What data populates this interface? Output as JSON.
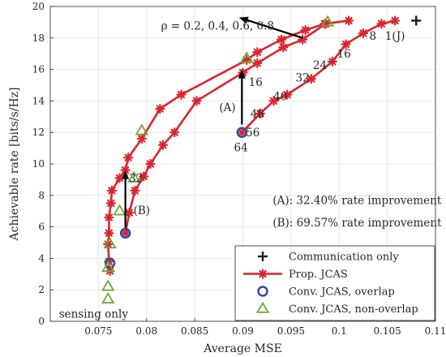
{
  "chart_data": {
    "type": "line",
    "xlabel": "Average MSE",
    "ylabel": "Achievable rate [bits/s/Hz]",
    "xlim": [
      0.07,
      0.11
    ],
    "ylim": [
      0,
      20
    ],
    "xticks": [
      "0.075",
      "0.08",
      "0.085",
      "0.09",
      "0.095",
      "0.1",
      "0.105",
      "0.11"
    ],
    "yticks": [
      "0",
      "2",
      "4",
      "6",
      "8",
      "10",
      "12",
      "14",
      "16",
      "18",
      "20"
    ],
    "grid": true,
    "legend_position": "bottom-right",
    "colors": {
      "prop": "#d9262e",
      "overlap": "#2f4a9e",
      "nonoverlap": "#6fa83a",
      "comm": "#1a1a1a",
      "arrow": "#000000"
    },
    "series": [
      {
        "key": "comm",
        "name": "Communication only",
        "marker": "plus",
        "points": [
          [
            0.108,
            19.1
          ]
        ]
      },
      {
        "key": "prop",
        "name": "Prop. JCAS",
        "marker": "asterisk",
        "curves": [
          [
            [
              0.0762,
              3.2
            ],
            [
              0.0761,
              3.8
            ],
            [
              0.076,
              4.9
            ],
            [
              0.0761,
              5.6
            ],
            [
              0.0761,
              6.6
            ],
            [
              0.0763,
              7.5
            ],
            [
              0.0764,
              8.3
            ],
            [
              0.0772,
              9.1
            ],
            [
              0.0778,
              9.6
            ],
            [
              0.0781,
              10.4
            ],
            [
              0.0795,
              11.6
            ],
            [
              0.0814,
              13.5
            ],
            [
              0.0836,
              14.4
            ],
            [
              0.0904,
              16.6
            ],
            [
              0.0915,
              17.1
            ],
            [
              0.094,
              17.9
            ],
            [
              0.0965,
              18.5
            ],
            [
              0.0985,
              18.9
            ],
            [
              0.101,
              19.1
            ]
          ],
          [
            [
              0.0778,
              5.6
            ],
            [
              0.0782,
              6.9
            ],
            [
              0.0788,
              8.3
            ],
            [
              0.0797,
              9.2
            ],
            [
              0.0804,
              10.0
            ],
            [
              0.0817,
              11.2
            ],
            [
              0.0829,
              12.0
            ],
            [
              0.0852,
              14.0
            ],
            [
              0.09,
              15.8
            ],
            [
              0.0915,
              16.4
            ],
            [
              0.0942,
              17.4
            ],
            [
              0.0962,
              17.9
            ],
            [
              0.0986,
              18.9
            ]
          ],
          [
            [
              0.0899,
              12.0
            ],
            [
              0.0918,
              13.2
            ],
            [
              0.0932,
              14.0
            ],
            [
              0.0946,
              14.4
            ],
            [
              0.0971,
              15.4
            ],
            [
              0.0993,
              16.5
            ],
            [
              0.1007,
              17.6
            ],
            [
              0.1025,
              18.3
            ],
            [
              0.1044,
              18.9
            ],
            [
              0.1058,
              19.1
            ]
          ]
        ]
      },
      {
        "key": "overlap",
        "name": "Conv. JCAS, overlap",
        "marker": "circle",
        "points": [
          [
            0.0762,
            3.7
          ],
          [
            0.0778,
            5.6
          ],
          [
            0.0899,
            12.0
          ]
        ]
      },
      {
        "key": "nonoverlap",
        "name": "Conv. JCAS, non-overlap",
        "marker": "triangle",
        "points": [
          [
            0.076,
            1.4
          ],
          [
            0.076,
            2.2
          ],
          [
            0.076,
            3.4
          ],
          [
            0.0762,
            4.9
          ],
          [
            0.0772,
            7.0
          ],
          [
            0.0787,
            9.1
          ],
          [
            0.0795,
            12.1
          ],
          [
            0.0904,
            16.7
          ],
          [
            0.0988,
            19.0
          ]
        ]
      }
    ],
    "arrows": [
      {
        "from": [
          0.0899,
          12.5
        ],
        "to": [
          0.0899,
          16.0
        ]
      },
      {
        "from": [
          0.0778,
          5.95
        ],
        "to": [
          0.0778,
          9.6
        ]
      },
      {
        "from": [
          0.0962,
          18.0
        ],
        "to": [
          0.0896,
          19.3
        ]
      }
    ],
    "annotations": [
      {
        "text": "ρ = 0.2, 0.4, 0.6, 0.8",
        "x": 0.0815,
        "y": 18.8,
        "anchor": "start"
      },
      {
        "text": "1(J)",
        "x": 0.1058,
        "y": 18.15,
        "anchor": "middle"
      },
      {
        "text": "8",
        "x": 0.1035,
        "y": 18.15,
        "anchor": "middle"
      },
      {
        "text": "16",
        "x": 0.1005,
        "y": 17.0,
        "anchor": "middle"
      },
      {
        "text": "24",
        "x": 0.098,
        "y": 16.3,
        "anchor": "middle"
      },
      {
        "text": "32",
        "x": 0.0962,
        "y": 15.5,
        "anchor": "middle"
      },
      {
        "text": "40",
        "x": 0.0939,
        "y": 14.3,
        "anchor": "middle"
      },
      {
        "text": "48",
        "x": 0.0915,
        "y": 13.2,
        "anchor": "middle"
      },
      {
        "text": "56",
        "x": 0.0898,
        "y": 12.0,
        "anchor": "start",
        "dx": 1.5
      },
      {
        "text": "64",
        "x": 0.0898,
        "y": 11.05,
        "anchor": "middle"
      },
      {
        "text": "16",
        "x": 0.0906,
        "y": 15.2,
        "anchor": "start"
      },
      {
        "text": "(A)",
        "x": 0.0884,
        "y": 13.6,
        "anchor": "middle"
      },
      {
        "text": "32",
        "x": 0.0789,
        "y": 9.1,
        "anchor": "middle"
      },
      {
        "text": "(B)",
        "x": 0.0795,
        "y": 7.05,
        "anchor": "middle"
      },
      {
        "text": "(A): 32.40% rate improvement",
        "x": 0.0931,
        "y": 7.7,
        "anchor": "start"
      },
      {
        "text": "(B): 69.57% rate improvement",
        "x": 0.0931,
        "y": 6.3,
        "anchor": "start"
      },
      {
        "text": "sensing only",
        "x": 0.0709,
        "y": 0.5,
        "anchor": "start"
      }
    ]
  }
}
